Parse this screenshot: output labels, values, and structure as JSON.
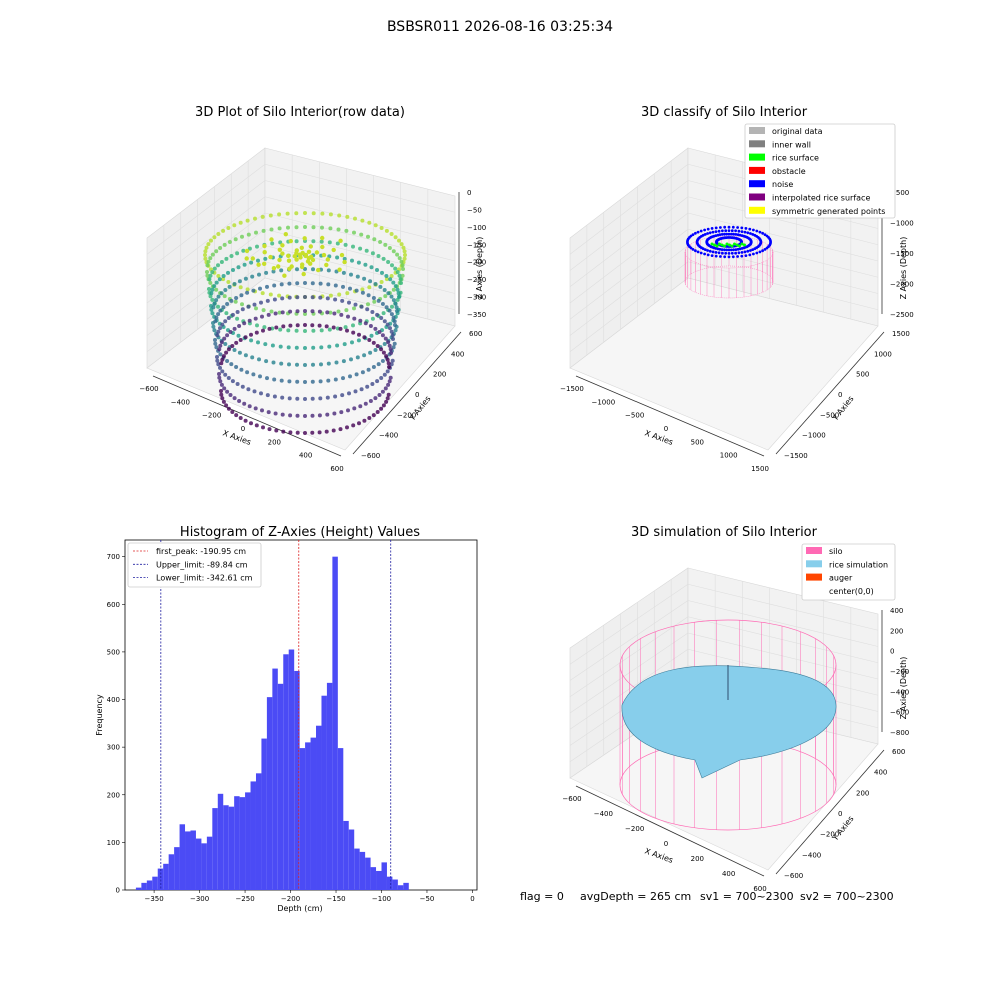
{
  "suptitle": "BSBSR011 2026-08-16 03:25:34",
  "panels": {
    "raw": {
      "title": "3D Plot of Silo Interior(row data)",
      "xlabel": "X Axies",
      "ylabel": "Y Axies",
      "zlabel": "Z Axies (Depth)",
      "xticks": [
        "−600",
        "−400",
        "−200",
        "0",
        "200",
        "400",
        "600"
      ],
      "yticks": [
        "−600",
        "−400",
        "−200",
        "0",
        "200",
        "400",
        "600"
      ],
      "zticks": [
        "0",
        "−50",
        "−100",
        "−150",
        "−200",
        "−250",
        "−300",
        "−350"
      ]
    },
    "classify": {
      "title": "3D classify of Silo Interior",
      "xlabel": "X Axies",
      "ylabel": "Y Axies",
      "zlabel": "Z Axies (Depth)",
      "xticks": [
        "−1500",
        "−1000",
        "−500",
        "0",
        "500",
        "1000",
        "1500"
      ],
      "yticks": [
        "−1500",
        "−1000",
        "−500",
        "0",
        "500",
        "1000",
        "1500"
      ],
      "zticks": [
        "−500",
        "−1000",
        "−1500",
        "−2000",
        "−2500"
      ],
      "legend": [
        {
          "label": "original data",
          "color": "#b4b4b4"
        },
        {
          "label": "inner wall",
          "color": "#808080"
        },
        {
          "label": "rice surface",
          "color": "#00ff00"
        },
        {
          "label": "obstacle",
          "color": "#ff0000"
        },
        {
          "label": "noise",
          "color": "#0000ff"
        },
        {
          "label": "interpolated rice surface",
          "color": "#800080"
        },
        {
          "label": "symmetric generated points",
          "color": "#ffff00"
        }
      ]
    },
    "simulation": {
      "title": "3D simulation of Silo Interior",
      "xlabel": "X Axies",
      "ylabel": "Y Axies",
      "zlabel": "Z Axies (Depth)",
      "xticks": [
        "−600",
        "−400",
        "−200",
        "0",
        "200",
        "400",
        "600"
      ],
      "yticks": [
        "−600",
        "−400",
        "−200",
        "0",
        "200",
        "400",
        "600"
      ],
      "zticks": [
        "400",
        "200",
        "0",
        "−200",
        "−400",
        "−600",
        "−800"
      ],
      "legend": [
        {
          "label": "silo",
          "color": "#ff69b4"
        },
        {
          "label": "rice simulation",
          "color": "#87ceeb"
        },
        {
          "label": "auger",
          "color": "#ff4500"
        },
        {
          "label": "center(0,0)",
          "color": ""
        }
      ]
    }
  },
  "status": {
    "flag": "flag = 0",
    "avg": "avgDepth = 265 cm",
    "sv1": "sv1 = 700~2300",
    "sv2": "sv2 = 700~2300"
  },
  "chart_data": {
    "type": "bar",
    "title": "Histogram of Z-Axies (Height) Values",
    "xlabel": "Depth (cm)",
    "ylabel": "Frequency",
    "xlim": [
      -382,
      5
    ],
    "ylim": [
      0,
      735
    ],
    "xticks": [
      -350,
      -300,
      -250,
      -200,
      -150,
      -100,
      -50,
      0
    ],
    "yticks": [
      0,
      100,
      200,
      300,
      400,
      500,
      600,
      700
    ],
    "bin_start": -370,
    "bin_width": 6,
    "values": [
      5,
      15,
      20,
      28,
      45,
      55,
      75,
      90,
      138,
      123,
      125,
      108,
      98,
      112,
      172,
      202,
      178,
      175,
      197,
      195,
      205,
      228,
      245,
      318,
      405,
      465,
      433,
      495,
      505,
      460,
      298,
      310,
      320,
      345,
      408,
      435,
      700,
      298,
      145,
      127,
      87,
      80,
      68,
      48,
      40,
      58,
      28,
      22,
      10,
      15
    ],
    "bar_color": "#4b4bf5",
    "vlines": [
      {
        "label": "first_peak: -190.95 cm",
        "x": -190.95,
        "color": "#dd2222"
      },
      {
        "label": "Upper_limit: -89.84 cm",
        "x": -89.84,
        "color": "#1f1fa0"
      },
      {
        "label": "Lower_limit: -342.61 cm",
        "x": -342.61,
        "color": "#1f1fa0"
      }
    ],
    "legend_position": "upper left"
  }
}
